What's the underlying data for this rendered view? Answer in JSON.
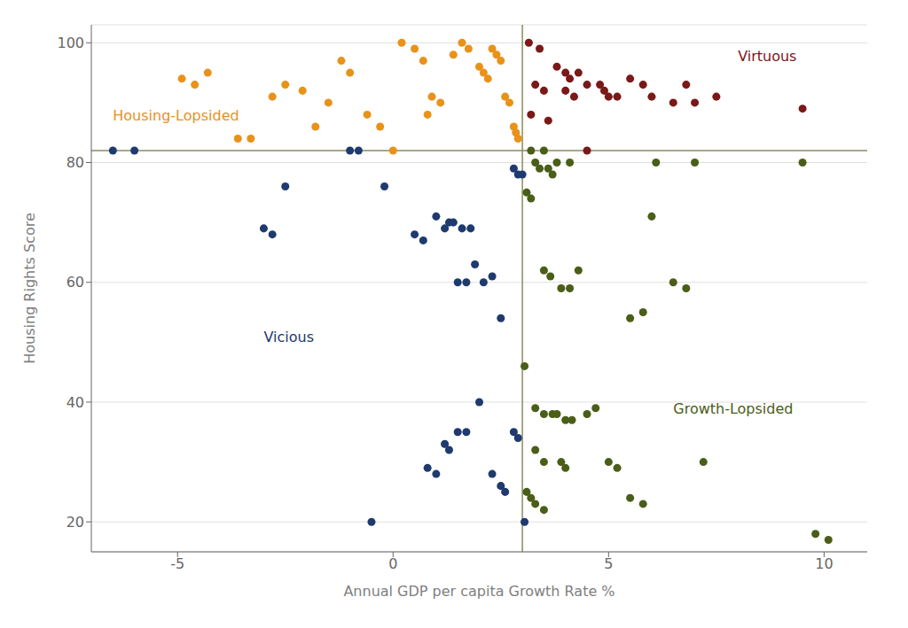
{
  "chart_data": {
    "type": "scatter",
    "xlabel": "Annual GDP per capita Growth Rate %",
    "ylabel": "Housing Rights Score",
    "xlim": [
      -7,
      11
    ],
    "ylim": [
      15,
      103
    ],
    "xticks": [
      -5,
      0,
      5,
      10
    ],
    "yticks": [
      20,
      40,
      60,
      80,
      100
    ],
    "grid": "y",
    "series": [
      {
        "color": "#E8921A",
        "values": [
          [
            -4.9,
            94
          ],
          [
            -4.6,
            93
          ],
          [
            -4.3,
            95
          ],
          [
            -3.6,
            84
          ],
          [
            -3.3,
            84
          ],
          [
            -2.8,
            91
          ],
          [
            -2.5,
            93
          ],
          [
            -1.8,
            86
          ],
          [
            -1.2,
            97
          ],
          [
            -1.0,
            95
          ],
          [
            -0.6,
            88
          ],
          [
            -0.3,
            86
          ],
          [
            0.2,
            100
          ],
          [
            0.5,
            99
          ],
          [
            0.7,
            97
          ],
          [
            0.9,
            91
          ],
          [
            1.1,
            90
          ],
          [
            1.4,
            98
          ],
          [
            1.6,
            100
          ],
          [
            1.75,
            99
          ],
          [
            2.0,
            96
          ],
          [
            2.1,
            95
          ],
          [
            2.2,
            94
          ],
          [
            2.3,
            99
          ],
          [
            2.4,
            98
          ],
          [
            2.5,
            97
          ],
          [
            2.6,
            91
          ],
          [
            2.7,
            90
          ],
          [
            2.8,
            86
          ],
          [
            2.85,
            85
          ],
          [
            2.9,
            84
          ],
          [
            -2.1,
            92
          ],
          [
            -1.5,
            90
          ],
          [
            0.8,
            88
          ],
          [
            0.0,
            82
          ]
        ]
      },
      {
        "color": "#7B1818",
        "values": [
          [
            3.15,
            100
          ],
          [
            3.4,
            99
          ],
          [
            3.8,
            96
          ],
          [
            4.0,
            95
          ],
          [
            4.1,
            94
          ],
          [
            4.3,
            95
          ],
          [
            4.5,
            93
          ],
          [
            3.3,
            93
          ],
          [
            3.5,
            92
          ],
          [
            3.2,
            88
          ],
          [
            3.6,
            87
          ],
          [
            4.0,
            92
          ],
          [
            4.2,
            91
          ],
          [
            4.8,
            93
          ],
          [
            4.9,
            92
          ],
          [
            5.0,
            91
          ],
          [
            5.5,
            94
          ],
          [
            5.8,
            93
          ],
          [
            6.0,
            91
          ],
          [
            6.5,
            90
          ],
          [
            4.5,
            82
          ],
          [
            7.0,
            90
          ],
          [
            9.5,
            89
          ],
          [
            6.8,
            93
          ],
          [
            7.5,
            91
          ],
          [
            5.2,
            91
          ]
        ]
      },
      {
        "color": "#1E3A6E",
        "values": [
          [
            -6.5,
            82
          ],
          [
            -6.0,
            82
          ],
          [
            -3.0,
            69
          ],
          [
            -2.8,
            68
          ],
          [
            -2.5,
            76
          ],
          [
            -1.0,
            82
          ],
          [
            -0.8,
            82
          ],
          [
            -0.2,
            76
          ],
          [
            0.5,
            68
          ],
          [
            0.7,
            67
          ],
          [
            1.0,
            71
          ],
          [
            1.2,
            69
          ],
          [
            1.3,
            70
          ],
          [
            1.4,
            70
          ],
          [
            1.6,
            69
          ],
          [
            1.8,
            69
          ],
          [
            1.5,
            60
          ],
          [
            1.7,
            60
          ],
          [
            1.9,
            63
          ],
          [
            2.1,
            60
          ],
          [
            2.3,
            61
          ],
          [
            0.8,
            29
          ],
          [
            1.0,
            28
          ],
          [
            1.2,
            33
          ],
          [
            1.3,
            32
          ],
          [
            1.5,
            35
          ],
          [
            1.7,
            35
          ],
          [
            2.0,
            40
          ],
          [
            2.3,
            28
          ],
          [
            2.5,
            26
          ],
          [
            2.6,
            25
          ],
          [
            2.8,
            35
          ],
          [
            2.9,
            34
          ],
          [
            3.05,
            20
          ],
          [
            -0.5,
            20
          ],
          [
            2.5,
            54
          ],
          [
            2.8,
            79
          ],
          [
            2.9,
            78
          ],
          [
            3.0,
            78
          ]
        ]
      },
      {
        "color": "#4A5E18",
        "values": [
          [
            3.1,
            75
          ],
          [
            3.2,
            74
          ],
          [
            3.05,
            46
          ],
          [
            3.2,
            82
          ],
          [
            3.5,
            82
          ],
          [
            3.3,
            80
          ],
          [
            3.4,
            79
          ],
          [
            3.6,
            79
          ],
          [
            3.7,
            78
          ],
          [
            3.8,
            80
          ],
          [
            4.1,
            80
          ],
          [
            3.5,
            62
          ],
          [
            3.65,
            61
          ],
          [
            3.9,
            59
          ],
          [
            4.1,
            59
          ],
          [
            4.3,
            62
          ],
          [
            3.3,
            39
          ],
          [
            3.5,
            38
          ],
          [
            3.7,
            38
          ],
          [
            3.8,
            38
          ],
          [
            4.0,
            37
          ],
          [
            4.15,
            37
          ],
          [
            3.3,
            32
          ],
          [
            3.5,
            30
          ],
          [
            3.9,
            30
          ],
          [
            4.0,
            29
          ],
          [
            3.1,
            25
          ],
          [
            3.2,
            24
          ],
          [
            3.3,
            23
          ],
          [
            3.5,
            22
          ],
          [
            4.5,
            38
          ],
          [
            4.7,
            39
          ],
          [
            5.0,
            30
          ],
          [
            5.2,
            29
          ],
          [
            5.5,
            24
          ],
          [
            5.8,
            23
          ],
          [
            5.5,
            54
          ],
          [
            5.8,
            55
          ],
          [
            6.0,
            71
          ],
          [
            6.5,
            60
          ],
          [
            6.8,
            59
          ],
          [
            7.0,
            80
          ],
          [
            7.2,
            30
          ],
          [
            9.5,
            80
          ],
          [
            9.8,
            18
          ],
          [
            10.1,
            17
          ],
          [
            6.1,
            80
          ]
        ]
      }
    ],
    "reference_lines": [
      {
        "y": 82,
        "color": "#8B8B60"
      },
      {
        "x": 3.0,
        "color": "#8B8B60"
      }
    ],
    "annotations": [
      {
        "text": "Housing-Lopsided",
        "x": -6.5,
        "y": 87,
        "color": "#E8921A"
      },
      {
        "text": "Virtuous",
        "x": 8.0,
        "y": 97,
        "color": "#7B1818"
      },
      {
        "text": "Vicious",
        "x": -3.0,
        "y": 50,
        "color": "#1E3A6E"
      },
      {
        "text": "Growth-Lopsided",
        "x": 6.5,
        "y": 38,
        "color": "#4A5E18"
      }
    ]
  }
}
